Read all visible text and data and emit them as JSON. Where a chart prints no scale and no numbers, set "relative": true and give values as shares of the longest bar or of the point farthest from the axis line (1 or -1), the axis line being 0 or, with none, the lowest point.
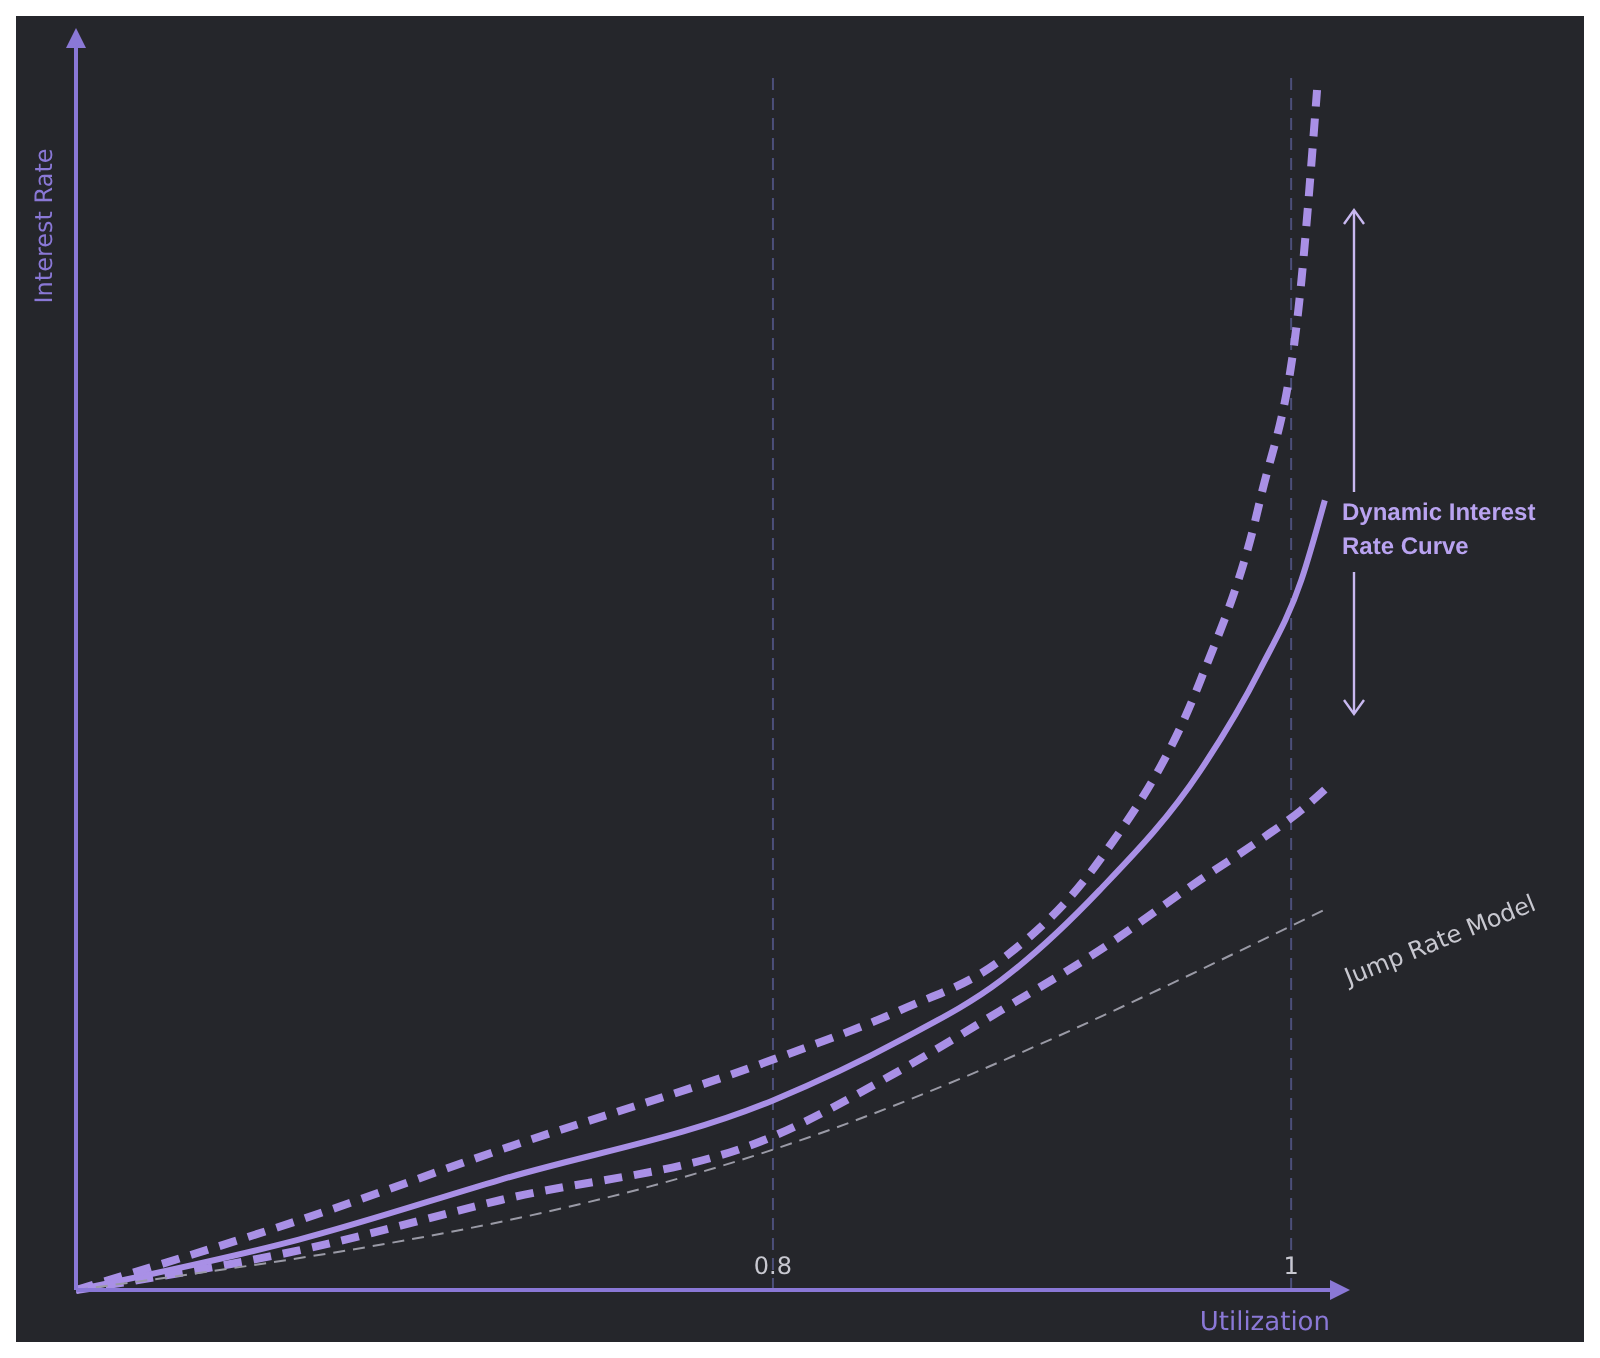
{
  "chart_data": {
    "type": "line",
    "relative": true,
    "xlabel": "Utilization",
    "ylabel": "Interest Rate",
    "xlim": [
      0.531,
      1.015
    ],
    "xticks": [
      0.8,
      1
    ],
    "tick_labels": "x",
    "grid": false,
    "marker": "none",
    "series": [
      {
        "color": "#a990e6",
        "line_style": "dotted",
        "x": [
          0.531,
          0.617,
          0.695,
          0.8,
          0.849,
          0.888,
          0.926,
          0.965,
          0.988,
          1.004,
          1.01
        ],
        "values": [
          0,
          0.058,
          0.117,
          0.192,
          0.233,
          0.275,
          0.358,
          0.508,
          0.658,
          0.842,
          1.0
        ]
      },
      {
        "color": "#a990e6",
        "line_style": "solid",
        "x": [
          0.531,
          0.617,
          0.695,
          0.8,
          0.849,
          0.888,
          0.926,
          0.965,
          0.988,
          1.004,
          1.013
        ],
        "values": [
          0,
          0.042,
          0.092,
          0.158,
          0.208,
          0.258,
          0.333,
          0.433,
          0.517,
          0.592,
          0.658
        ]
      },
      {
        "color": "#a990e6",
        "line_style": "dotted",
        "x": [
          0.531,
          0.617,
          0.695,
          0.8,
          0.849,
          0.888,
          0.926,
          0.965,
          0.988,
          1.004,
          1.013
        ],
        "values": [
          0,
          0.033,
          0.075,
          0.128,
          0.183,
          0.233,
          0.283,
          0.342,
          0.375,
          0.4,
          0.417
        ]
      },
      {
        "name": "Jump Rate Model",
        "color": "#9a9aa6",
        "line_style": "dashed",
        "x": [
          0.531,
          0.8,
          1.013
        ],
        "values": [
          0,
          0.117,
          0.317
        ]
      }
    ],
    "ref_lines": [
      {
        "axis": "x",
        "value": 0.8,
        "color": "#4c4f7a",
        "line_style": "dashed"
      },
      {
        "axis": "x",
        "value": 1,
        "color": "#4c4f7a",
        "line_style": "dashed"
      }
    ],
    "annotations": [
      "Dynamic Interest Rate Curve"
    ]
  }
}
